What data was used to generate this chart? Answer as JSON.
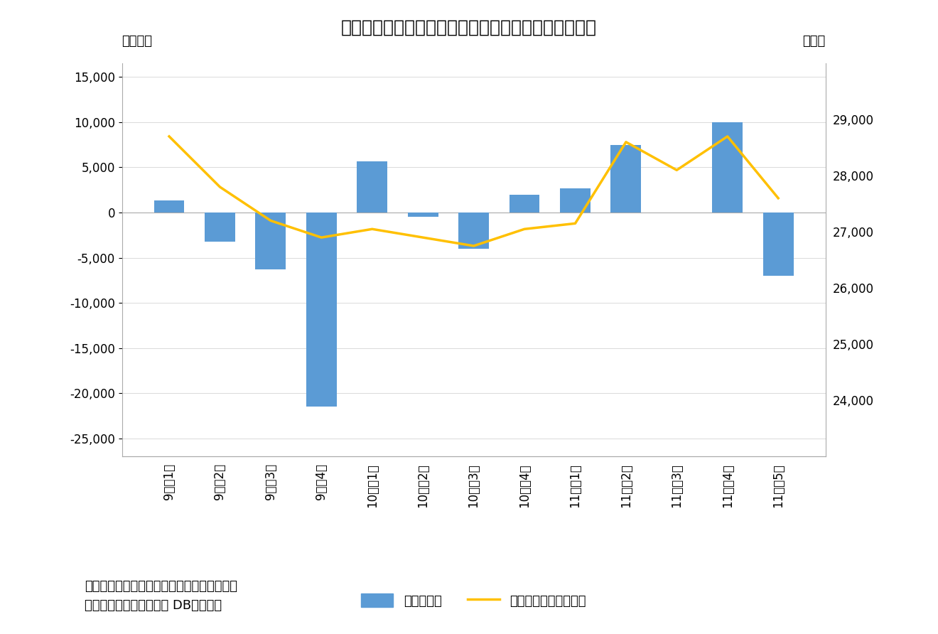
{
  "title": "図表２　海外投資家は第２週、第４週に大幅買い越し",
  "xlabel_left": "（億円）",
  "xlabel_right": "（円）",
  "categories": [
    "9月第1週",
    "9月第2週",
    "9月第3週",
    "9月第4週",
    "10月第1週",
    "10月第2週",
    "10月第3週",
    "10月第4週",
    "11月第1週",
    "11月第2週",
    "11月第3週",
    "11月第4週",
    "11月第5週"
  ],
  "bar_values": [
    1300,
    -3200,
    -6300,
    -21500,
    5700,
    -500,
    -4000,
    2000,
    2700,
    7500,
    0,
    10000,
    -7000
  ],
  "line_values": [
    28700,
    27800,
    27200,
    26900,
    27050,
    26900,
    26750,
    27050,
    27150,
    28600,
    28100,
    28700,
    27600
  ],
  "bar_color": "#5B9BD5",
  "line_color": "#FFC000",
  "ylim_left": [
    -27000,
    16500
  ],
  "ylim_right": [
    23000,
    30000
  ],
  "yticks_left": [
    -25000,
    -20000,
    -15000,
    -10000,
    -5000,
    0,
    5000,
    10000,
    15000
  ],
  "yticks_right": [
    24000,
    25000,
    26000,
    27000,
    28000,
    29000
  ],
  "legend_bar": "海外投資家",
  "legend_line": "日経平均株価（右軸）",
  "note1": "（注）海外投資家の現物と先物の合計、週次",
  "note2": "（資料）ニッセイ基礎研 DBから作成",
  "background_color": "#FFFFFF",
  "grid_color": "#CCCCCC",
  "title_fontsize": 18,
  "axis_label_fontsize": 13,
  "tick_fontsize": 12,
  "legend_fontsize": 13,
  "note_fontsize": 13
}
